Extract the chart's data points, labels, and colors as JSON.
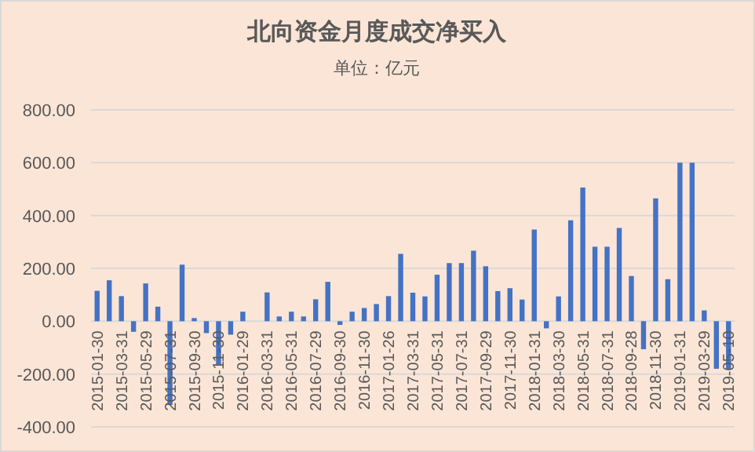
{
  "chart_data": {
    "type": "bar",
    "title": "北向资金月度成交净买入",
    "subtitle": "单位：亿元",
    "categories": [
      "2015-01-30",
      null,
      "2015-03-31",
      null,
      "2015-05-29",
      null,
      "2015-07-31",
      null,
      "2015-09-30",
      null,
      "2015-11-30",
      null,
      "2016-01-29",
      null,
      "2016-03-31",
      null,
      "2016-05-31",
      null,
      "2016-07-29",
      null,
      "2016-09-30",
      null,
      "2016-11-30",
      null,
      "2017-01-26",
      null,
      "2017-03-31",
      null,
      "2017-05-31",
      null,
      "2017-07-31",
      null,
      "2017-09-29",
      null,
      "2017-11-30",
      null,
      "2018-01-31",
      null,
      "2018-03-30",
      null,
      "2018-05-31",
      null,
      "2018-07-31",
      null,
      "2018-09-28",
      null,
      "2018-11-30",
      null,
      "2019-01-31",
      null,
      "2019-03-29",
      null,
      "2019-05-10"
    ],
    "values": [
      115,
      155,
      95,
      -40,
      143,
      55,
      -317,
      214,
      12,
      -45,
      -164,
      -51,
      36,
      0,
      109,
      18,
      36,
      18,
      83,
      149,
      -14,
      36,
      50,
      65,
      95,
      255,
      108,
      94,
      176,
      220,
      220,
      267,
      208,
      114,
      125,
      82,
      347,
      -27,
      94,
      382,
      506,
      282,
      282,
      353,
      171,
      -106,
      465,
      159,
      600,
      600,
      41,
      -180,
      -180
    ],
    "color": "#4472c4",
    "ylim": [
      -400,
      800
    ],
    "yticks": [
      {
        "value": -400,
        "label": "-400.00"
      },
      {
        "value": -200,
        "label": "-200.00"
      },
      {
        "value": 0,
        "label": "0.00"
      },
      {
        "value": 200,
        "label": "200.00"
      },
      {
        "value": 400,
        "label": "400.00"
      },
      {
        "value": 600,
        "label": "600.00"
      },
      {
        "value": 800,
        "label": "800.00"
      }
    ],
    "grid": "y"
  }
}
